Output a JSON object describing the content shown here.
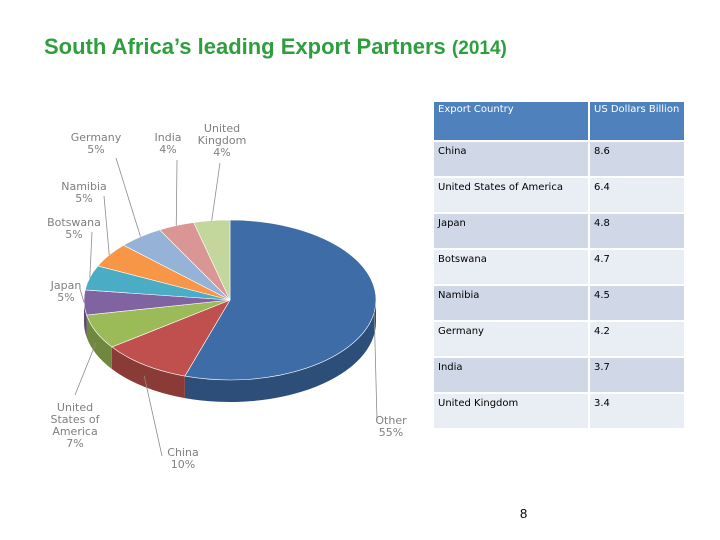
{
  "slide": {
    "title": "South Africa’s leading Export Partners",
    "title_year": "(2014)",
    "page_number": "8"
  },
  "table": {
    "header": {
      "country": "Export Country",
      "value": "US Dollars Billion"
    },
    "rows": [
      {
        "country": "China",
        "value": "8.6"
      },
      {
        "country": "United States of America",
        "value": "6.4"
      },
      {
        "country": "Japan",
        "value": "4.8"
      },
      {
        "country": "Botswana",
        "value": "4.7"
      },
      {
        "country": "Namibia",
        "value": "4.5"
      },
      {
        "country": "Germany",
        "value": "4.2"
      },
      {
        "country": "India",
        "value": "3.7"
      },
      {
        "country": "United Kingdom",
        "value": "3.4"
      }
    ]
  },
  "chart_data": {
    "type": "pie",
    "title": "",
    "style": "3d",
    "label_position": "outside with leader lines",
    "slices": [
      {
        "label": "Other",
        "value": 55,
        "value_label": "55%",
        "color": "#3e6ca6"
      },
      {
        "label": "China",
        "value": 10,
        "value_label": "10%",
        "color": "#c0504d"
      },
      {
        "label": "United States of America",
        "value": 7,
        "value_label": "7%",
        "color": "#9bbb59"
      },
      {
        "label": "Japan",
        "value": 5,
        "value_label": "5%",
        "color": "#8064a2"
      },
      {
        "label": "Botswana",
        "value": 5,
        "value_label": "5%",
        "color": "#4bacc6"
      },
      {
        "label": "Namibia",
        "value": 5,
        "value_label": "5%",
        "color": "#f79646"
      },
      {
        "label": "Germany",
        "value": 5,
        "value_label": "5%",
        "color": "#95b3d7"
      },
      {
        "label": "India",
        "value": 4,
        "value_label": "4%",
        "color": "#d99694"
      },
      {
        "label": "United Kingdom",
        "value": 4,
        "value_label": "4%",
        "color": "#c3d69b"
      }
    ]
  }
}
